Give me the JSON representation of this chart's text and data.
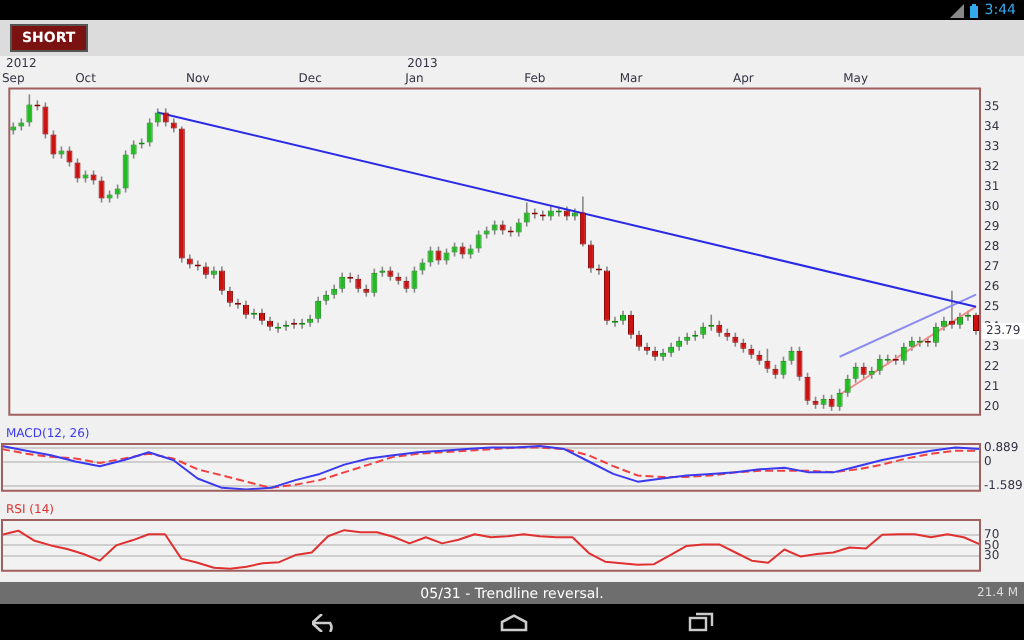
{
  "chart_data": [
    {
      "type": "candlestick",
      "categories": [
        "Sep",
        null,
        null,
        null,
        null,
        null,
        null,
        null,
        null,
        "Oct",
        null,
        null,
        null,
        null,
        null,
        null,
        null,
        null,
        null,
        null,
        null,
        null,
        null,
        "Nov",
        null,
        null,
        null,
        null,
        null,
        null,
        null,
        null,
        null,
        null,
        null,
        null,
        null,
        "Dec",
        null,
        null,
        null,
        null,
        null,
        null,
        null,
        null,
        null,
        null,
        null,
        null,
        "Jan",
        null,
        null,
        null,
        null,
        null,
        null,
        null,
        null,
        null,
        null,
        null,
        null,
        null,
        null,
        "Feb",
        null,
        null,
        null,
        null,
        null,
        null,
        null,
        null,
        null,
        null,
        null,
        "Mar",
        null,
        null,
        null,
        null,
        null,
        null,
        null,
        null,
        null,
        null,
        null,
        null,
        null,
        "Apr",
        null,
        null,
        null,
        null,
        null,
        null,
        null,
        null,
        null,
        null,
        null,
        null,
        null,
        "May",
        null,
        null,
        null,
        null,
        null,
        null,
        null,
        null,
        null,
        null,
        null,
        null,
        null,
        null,
        null
      ],
      "ohlc": [
        [
          33.8,
          34.2,
          33.6,
          34.0
        ],
        [
          34.0,
          34.4,
          33.8,
          34.2
        ],
        [
          34.2,
          35.6,
          34.0,
          35.1
        ],
        [
          35.1,
          35.3,
          34.8,
          35.0
        ],
        [
          35.0,
          35.2,
          33.4,
          33.6
        ],
        [
          33.6,
          33.8,
          32.4,
          32.6
        ],
        [
          32.6,
          33.0,
          32.4,
          32.8
        ],
        [
          32.8,
          33.0,
          32.0,
          32.2
        ],
        [
          32.2,
          32.4,
          31.2,
          31.4
        ],
        [
          31.4,
          31.8,
          31.2,
          31.6
        ],
        [
          31.6,
          31.8,
          31.1,
          31.3
        ],
        [
          31.3,
          31.5,
          30.2,
          30.4
        ],
        [
          30.4,
          30.8,
          30.2,
          30.6
        ],
        [
          30.6,
          31.1,
          30.4,
          30.9
        ],
        [
          30.9,
          32.8,
          30.7,
          32.6
        ],
        [
          32.6,
          33.3,
          32.4,
          33.1
        ],
        [
          33.1,
          33.4,
          32.9,
          33.2
        ],
        [
          33.2,
          34.4,
          33.0,
          34.2
        ],
        [
          34.2,
          34.9,
          34.0,
          34.7
        ],
        [
          34.7,
          34.9,
          34.0,
          34.2
        ],
        [
          34.2,
          34.4,
          33.7,
          33.9
        ],
        [
          33.9,
          34.0,
          27.2,
          27.4
        ],
        [
          27.4,
          27.6,
          26.9,
          27.1
        ],
        [
          27.1,
          27.3,
          26.8,
          27.0
        ],
        [
          27.0,
          27.2,
          26.4,
          26.6
        ],
        [
          26.6,
          27.0,
          26.4,
          26.8
        ],
        [
          26.8,
          27.0,
          25.6,
          25.8
        ],
        [
          25.8,
          26.0,
          25.0,
          25.2
        ],
        [
          25.2,
          25.4,
          24.9,
          25.1
        ],
        [
          25.1,
          25.3,
          24.4,
          24.6
        ],
        [
          24.6,
          24.9,
          24.4,
          24.7
        ],
        [
          24.7,
          24.9,
          24.1,
          24.3
        ],
        [
          24.3,
          24.5,
          23.8,
          24.0
        ],
        [
          23.9,
          24.2,
          23.7,
          24.0
        ],
        [
          24.0,
          24.3,
          23.8,
          24.1
        ],
        [
          24.2,
          24.4,
          23.9,
          24.1
        ],
        [
          24.1,
          24.4,
          23.9,
          24.2
        ],
        [
          24.2,
          24.6,
          24.0,
          24.4
        ],
        [
          24.4,
          25.5,
          24.2,
          25.3
        ],
        [
          25.3,
          25.8,
          25.1,
          25.6
        ],
        [
          25.6,
          26.1,
          25.4,
          25.9
        ],
        [
          25.9,
          26.7,
          25.7,
          26.5
        ],
        [
          26.5,
          26.7,
          26.2,
          26.4
        ],
        [
          26.4,
          26.6,
          25.7,
          25.9
        ],
        [
          25.9,
          26.1,
          25.5,
          25.7
        ],
        [
          25.7,
          26.9,
          25.5,
          26.7
        ],
        [
          26.7,
          27.0,
          26.5,
          26.8
        ],
        [
          26.8,
          27.0,
          26.3,
          26.5
        ],
        [
          26.5,
          26.7,
          26.1,
          26.3
        ],
        [
          26.3,
          26.5,
          25.7,
          25.9
        ],
        [
          25.9,
          27.0,
          25.7,
          26.8
        ],
        [
          26.8,
          27.4,
          26.6,
          27.2
        ],
        [
          27.2,
          28.0,
          27.0,
          27.8
        ],
        [
          27.8,
          28.0,
          27.1,
          27.3
        ],
        [
          27.3,
          27.9,
          27.1,
          27.7
        ],
        [
          27.7,
          28.2,
          27.5,
          28.0
        ],
        [
          28.0,
          28.2,
          27.4,
          27.6
        ],
        [
          27.6,
          28.1,
          27.4,
          27.9
        ],
        [
          27.9,
          28.8,
          27.7,
          28.6
        ],
        [
          28.6,
          29.0,
          28.4,
          28.8
        ],
        [
          28.8,
          29.3,
          28.6,
          29.1
        ],
        [
          29.1,
          29.3,
          28.6,
          28.8
        ],
        [
          28.8,
          29.0,
          28.5,
          28.7
        ],
        [
          28.7,
          29.4,
          28.5,
          29.2
        ],
        [
          29.2,
          30.2,
          29.0,
          29.7
        ],
        [
          29.7,
          29.9,
          29.4,
          29.6
        ],
        [
          29.6,
          29.8,
          29.3,
          29.5
        ],
        [
          29.5,
          30.0,
          29.3,
          29.8
        ],
        [
          29.7,
          30.0,
          29.5,
          29.8
        ],
        [
          29.8,
          30.0,
          29.3,
          29.5
        ],
        [
          29.5,
          29.9,
          29.3,
          29.7
        ],
        [
          29.7,
          30.5,
          28.0,
          28.1
        ],
        [
          28.1,
          28.3,
          26.7,
          26.9
        ],
        [
          26.9,
          27.1,
          26.6,
          26.8
        ],
        [
          26.8,
          27.0,
          24.1,
          24.3
        ],
        [
          24.2,
          24.5,
          24.0,
          24.3
        ],
        [
          24.3,
          24.8,
          24.1,
          24.6
        ],
        [
          24.6,
          24.8,
          23.4,
          23.6
        ],
        [
          23.6,
          23.8,
          22.8,
          23.0
        ],
        [
          23.0,
          23.2,
          22.6,
          22.8
        ],
        [
          22.8,
          23.0,
          22.3,
          22.5
        ],
        [
          22.5,
          22.9,
          22.3,
          22.7
        ],
        [
          22.7,
          23.2,
          22.5,
          23.0
        ],
        [
          23.0,
          23.5,
          22.8,
          23.3
        ],
        [
          23.3,
          23.7,
          23.1,
          23.5
        ],
        [
          23.5,
          23.8,
          23.3,
          23.6
        ],
        [
          23.6,
          24.2,
          23.4,
          24.0
        ],
        [
          24.0,
          24.6,
          23.8,
          24.1
        ],
        [
          24.1,
          24.3,
          23.5,
          23.7
        ],
        [
          23.7,
          23.9,
          23.3,
          23.5
        ],
        [
          23.5,
          23.7,
          23.0,
          23.2
        ],
        [
          23.2,
          23.4,
          22.7,
          22.9
        ],
        [
          22.9,
          23.1,
          22.4,
          22.6
        ],
        [
          22.6,
          22.8,
          22.1,
          22.3
        ],
        [
          22.3,
          22.9,
          21.7,
          21.9
        ],
        [
          21.9,
          22.1,
          21.4,
          21.6
        ],
        [
          21.6,
          22.5,
          21.4,
          22.3
        ],
        [
          22.3,
          23.0,
          22.1,
          22.8
        ],
        [
          22.8,
          23.0,
          21.3,
          21.5
        ],
        [
          21.5,
          21.7,
          20.1,
          20.3
        ],
        [
          20.3,
          20.5,
          19.9,
          20.1
        ],
        [
          20.1,
          20.6,
          19.9,
          20.4
        ],
        [
          20.4,
          20.6,
          19.8,
          20.0
        ],
        [
          20.0,
          20.9,
          19.8,
          20.7
        ],
        [
          20.7,
          21.6,
          20.5,
          21.4
        ],
        [
          21.4,
          22.2,
          21.2,
          22.0
        ],
        [
          22.0,
          22.2,
          21.4,
          21.6
        ],
        [
          21.6,
          22.0,
          21.4,
          21.8
        ],
        [
          21.8,
          22.6,
          21.6,
          22.4
        ],
        [
          22.3,
          22.6,
          22.1,
          22.4
        ],
        [
          22.4,
          22.6,
          22.1,
          22.3
        ],
        [
          22.3,
          23.2,
          22.1,
          23.0
        ],
        [
          23.0,
          23.5,
          22.8,
          23.3
        ],
        [
          23.2,
          23.5,
          23.0,
          23.3
        ],
        [
          23.3,
          23.5,
          23.0,
          23.2
        ],
        [
          23.2,
          24.2,
          23.0,
          24.0
        ],
        [
          24.0,
          24.5,
          23.8,
          24.3
        ],
        [
          24.3,
          25.8,
          23.9,
          24.1
        ],
        [
          24.1,
          24.7,
          23.9,
          24.5
        ],
        [
          24.5,
          24.8,
          24.3,
          24.6
        ],
        [
          24.6,
          24.7,
          23.6,
          23.79
        ]
      ],
      "series": [
        {
          "type": "line",
          "color": "#2a2ae6",
          "values": [
            null,
            null,
            null,
            null,
            null,
            null,
            null,
            null,
            null,
            null,
            null,
            null,
            null,
            null,
            null,
            null,
            null,
            null,
            34.7,
            null,
            null,
            null,
            null,
            null,
            null,
            null,
            null,
            null,
            null,
            null,
            null,
            null,
            null,
            null,
            null,
            null,
            null,
            null,
            null,
            null,
            null,
            null,
            null,
            null,
            null,
            null,
            null,
            null,
            null,
            null,
            null,
            null,
            null,
            null,
            null,
            null,
            null,
            null,
            null,
            null,
            null,
            null,
            null,
            null,
            null,
            null,
            null,
            null,
            null,
            null,
            null,
            null,
            null,
            null,
            null,
            null,
            null,
            null,
            null,
            null,
            null,
            null,
            null,
            null,
            null,
            null,
            null,
            null,
            null,
            null,
            null,
            null,
            null,
            null,
            null,
            null,
            null,
            null,
            null,
            null,
            null,
            null,
            null,
            null,
            null,
            null,
            null,
            null,
            null,
            null,
            null,
            null,
            null,
            null,
            null,
            null,
            null,
            null,
            null,
            null,
            25.0
          ]
        },
        {
          "type": "line",
          "color": "#8c8cf0",
          "values": [
            null,
            null,
            null,
            null,
            null,
            null,
            null,
            null,
            null,
            null,
            null,
            null,
            null,
            null,
            null,
            null,
            null,
            null,
            null,
            null,
            null,
            null,
            null,
            null,
            null,
            null,
            null,
            null,
            null,
            null,
            null,
            null,
            null,
            null,
            null,
            null,
            null,
            null,
            null,
            null,
            null,
            null,
            null,
            null,
            null,
            null,
            null,
            null,
            null,
            null,
            null,
            null,
            null,
            null,
            null,
            null,
            null,
            null,
            null,
            null,
            null,
            null,
            null,
            null,
            null,
            null,
            null,
            null,
            null,
            null,
            null,
            null,
            null,
            null,
            null,
            null,
            null,
            null,
            null,
            null,
            null,
            null,
            null,
            null,
            null,
            null,
            null,
            null,
            null,
            null,
            null,
            null,
            null,
            null,
            null,
            null,
            null,
            null,
            null,
            null,
            null,
            null,
            null,
            22.5,
            null,
            null,
            null,
            null,
            null,
            null,
            null,
            null,
            null,
            null,
            null,
            null,
            null,
            null,
            null,
            null,
            25.6
          ]
        },
        {
          "type": "line",
          "color": "#f08c8c",
          "values": [
            null,
            null,
            null,
            null,
            null,
            null,
            null,
            null,
            null,
            null,
            null,
            null,
            null,
            null,
            null,
            null,
            null,
            null,
            null,
            null,
            null,
            null,
            null,
            null,
            null,
            null,
            null,
            null,
            null,
            null,
            null,
            null,
            null,
            null,
            null,
            null,
            null,
            null,
            null,
            null,
            null,
            null,
            null,
            null,
            null,
            null,
            null,
            null,
            null,
            null,
            null,
            null,
            null,
            null,
            null,
            null,
            null,
            null,
            null,
            null,
            null,
            null,
            null,
            null,
            null,
            null,
            null,
            null,
            null,
            null,
            null,
            null,
            null,
            null,
            null,
            null,
            null,
            null,
            null,
            null,
            null,
            null,
            null,
            null,
            null,
            null,
            null,
            null,
            null,
            null,
            null,
            null,
            null,
            null,
            null,
            null,
            null,
            null,
            null,
            null,
            null,
            null,
            null,
            20.6,
            null,
            null,
            null,
            null,
            null,
            null,
            null,
            null,
            null,
            null,
            null,
            null,
            null,
            null,
            null,
            null,
            25.0
          ]
        }
      ],
      "ylim": [
        19.6,
        35.9
      ],
      "yticks": [
        20,
        21,
        22,
        23,
        24,
        25,
        26,
        27,
        28,
        29,
        30,
        31,
        32,
        33,
        34,
        35
      ],
      "annotations": [
        "3:44",
        "SHORT",
        "2012",
        "2013",
        {
          "text": "23.79",
          "y": 23.79
        }
      ]
    },
    {
      "type": "line",
      "title": "MACD(12, 26)",
      "categories": [
        null,
        null,
        null,
        null,
        null,
        null,
        null,
        null,
        null,
        null,
        null,
        null,
        null,
        null,
        null,
        null,
        null,
        null,
        null,
        null,
        null,
        null,
        null,
        null,
        null,
        null,
        null,
        null,
        null,
        null,
        null,
        null,
        null,
        null,
        null,
        null,
        null,
        null,
        null,
        null,
        null
      ],
      "series": [
        {
          "color": "#3a3af0",
          "values": [
            1.0,
            0.7,
            0.4,
            0.0,
            -0.3,
            0.1,
            0.6,
            0.1,
            -1.1,
            -1.7,
            -1.8,
            -1.7,
            -1.2,
            -0.8,
            -0.2,
            0.2,
            0.4,
            0.6,
            0.7,
            0.8,
            0.9,
            0.9,
            1.0,
            0.8,
            0.0,
            -0.8,
            -1.3,
            -1.1,
            -0.9,
            -0.8,
            -0.7,
            -0.5,
            -0.4,
            -0.7,
            -0.7,
            -0.3,
            0.1,
            0.4,
            0.7,
            0.9,
            0.8
          ]
        },
        {
          "color": "#f04040",
          "line_style": "dashed",
          "values": [
            0.8,
            0.5,
            0.3,
            0.2,
            -0.1,
            0.2,
            0.5,
            0.2,
            -0.5,
            -0.9,
            -1.3,
            -1.7,
            -1.5,
            -1.2,
            -0.7,
            -0.2,
            0.3,
            0.5,
            0.6,
            0.7,
            0.8,
            0.9,
            0.9,
            0.8,
            0.4,
            -0.3,
            -0.9,
            -1.0,
            -1.0,
            -0.9,
            -0.7,
            -0.6,
            -0.6,
            -0.6,
            -0.7,
            -0.5,
            -0.2,
            0.2,
            0.5,
            0.7,
            0.7
          ]
        }
      ],
      "ylim": [
        -1.89,
        1.13
      ],
      "yticks": [
        -1.589,
        0,
        0.889
      ],
      "grid": "y",
      "tick_labels": "y"
    },
    {
      "type": "line",
      "title": "RSI (14)",
      "categories": [
        null,
        null,
        null,
        null,
        null,
        null,
        null,
        null,
        null,
        null,
        null,
        null,
        null,
        null,
        null,
        null,
        null,
        null,
        null,
        null,
        null,
        null,
        null,
        null,
        null,
        null,
        null,
        null,
        null,
        null,
        null,
        null,
        null,
        null,
        null,
        null,
        null,
        null,
        null,
        null,
        null,
        null,
        null,
        null,
        null,
        null,
        null,
        null,
        null,
        null,
        null,
        null,
        null,
        null,
        null,
        null,
        null,
        null,
        null,
        null,
        null
      ],
      "values": [
        71,
        79,
        59,
        50,
        43,
        33,
        20,
        50,
        60,
        72,
        72,
        24,
        16,
        6,
        4,
        8,
        15,
        17,
        31,
        36,
        68,
        80,
        76,
        76,
        67,
        54,
        66,
        54,
        61,
        72,
        66,
        68,
        72,
        68,
        66,
        66,
        35,
        18,
        15,
        12,
        13,
        31,
        49,
        52,
        52,
        36,
        20,
        16,
        42,
        28,
        33,
        36,
        46,
        44,
        71,
        72,
        72,
        66,
        72,
        66,
        52
      ],
      "color": "#e03030",
      "ylim": [
        0,
        100
      ],
      "yticks": [
        30,
        50,
        70
      ],
      "grid": "y",
      "tick_labels": "y",
      "annotations": [
        "05/31 - Trendline reversal.",
        "21.4 M"
      ]
    }
  ]
}
